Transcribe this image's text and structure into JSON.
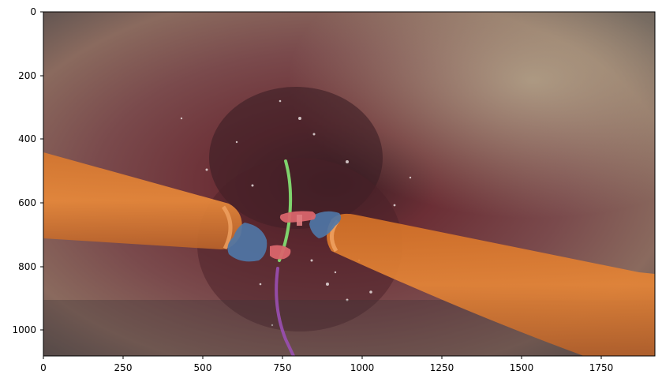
{
  "image": {
    "description_scene": "surgical endoscopic frame with segmentation overlay",
    "x_ticks": [
      "0",
      "250",
      "500",
      "750",
      "1000",
      "1250",
      "1500",
      "1750"
    ],
    "y_ticks": [
      "0",
      "200",
      "400",
      "600",
      "800",
      "1000"
    ],
    "x_range": [
      0,
      1920
    ],
    "y_range": [
      0,
      1080
    ],
    "overlay_colors": {
      "instrument_shaft": "#e07a2a",
      "instrument_wrist": "#4f78a8",
      "instrument_clasper": "#d9656b",
      "needle": "#7fd36d",
      "thread": "#9a4fb3"
    }
  }
}
